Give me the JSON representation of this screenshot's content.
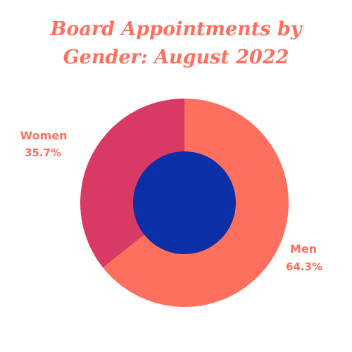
{
  "chart_data": {
    "type": "pie",
    "title_line1": "Board Appointments by",
    "title_line2": "Gender: August 2022",
    "categories": [
      "Men",
      "Women"
    ],
    "values": [
      64.3,
      35.7
    ],
    "value_labels": [
      "64.3%",
      "35.7%"
    ],
    "colors": [
      "#ff6f5e",
      "#d93a63"
    ],
    "center_color": "#0a2fa6",
    "label_color": "#ff6f5e",
    "style": "donut"
  }
}
